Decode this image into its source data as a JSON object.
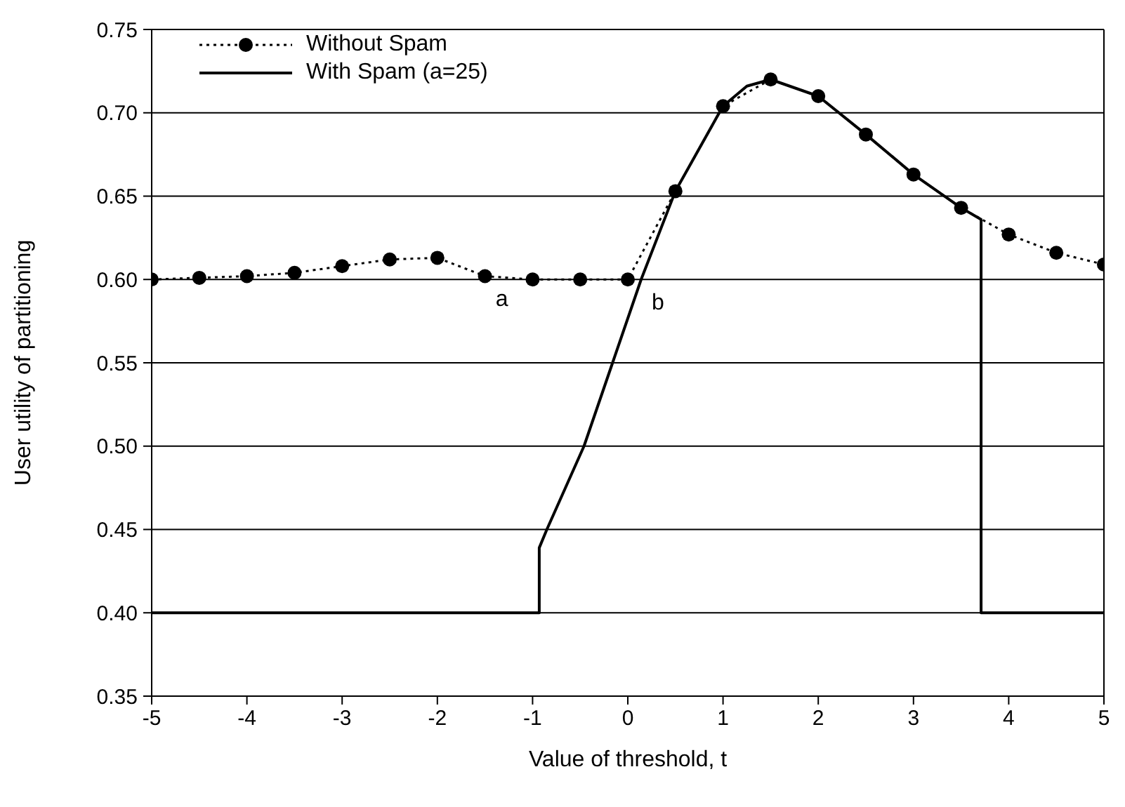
{
  "chart_data": {
    "type": "line",
    "xlabel": "Value of threshold, t",
    "ylabel": "User utility of partitioning",
    "xlim": [
      -5,
      5
    ],
    "xticks": [
      -5,
      -4,
      -3,
      -2,
      -1,
      0,
      1,
      2,
      3,
      4,
      5
    ],
    "ylim": [
      0.35,
      0.75
    ],
    "yticks": [
      0.35,
      {
        "value": 0.4,
        "label": "0.40"
      },
      0.45,
      {
        "value": 0.5,
        "label": "0.50"
      },
      0.55,
      {
        "value": 0.6,
        "label": "0.60"
      },
      0.65,
      {
        "value": 0.7,
        "label": "0.70"
      },
      0.75
    ],
    "grid": "y",
    "legend": "top left",
    "series": [
      {
        "name": "Without Spam",
        "color": "#000000",
        "marker": "circle",
        "line_style": "dotted",
        "x": [
          -5,
          -4.5,
          -4,
          -3.5,
          -3,
          -2.5,
          -2,
          -1.5,
          -1,
          -0.5,
          0,
          0.5,
          1,
          1.5,
          2,
          2.5,
          3,
          3.5,
          4,
          4.5,
          5
        ],
        "values": [
          0.6,
          0.601,
          0.602,
          0.604,
          0.608,
          0.612,
          0.613,
          0.602,
          0.6,
          0.6,
          0.6,
          0.653,
          0.704,
          0.72,
          0.71,
          0.687,
          0.663,
          0.643,
          0.627,
          0.616,
          0.609
        ]
      },
      {
        "name": "With Spam (a=25)",
        "color": "#000000",
        "marker": "none",
        "line_style": "solid",
        "x": [
          -5,
          -0.93,
          -0.93,
          -0.85,
          -0.46,
          -0.16,
          0.14,
          0.5,
          0.96,
          1,
          1.25,
          1.5,
          2,
          2.5,
          3,
          3.5,
          3.71,
          3.71,
          5
        ],
        "values": [
          0.4,
          0.4,
          0.439,
          0.45,
          0.5,
          0.55,
          0.6,
          0.653,
          0.7,
          0.704,
          0.716,
          0.72,
          0.71,
          0.687,
          0.663,
          0.643,
          0.636,
          0.4,
          0.4
        ]
      }
    ],
    "annotations": [
      {
        "text": "a",
        "x": -1.5,
        "y": 0.602
      },
      {
        "text": "b",
        "x": 0.14,
        "y": 0.6
      }
    ]
  }
}
